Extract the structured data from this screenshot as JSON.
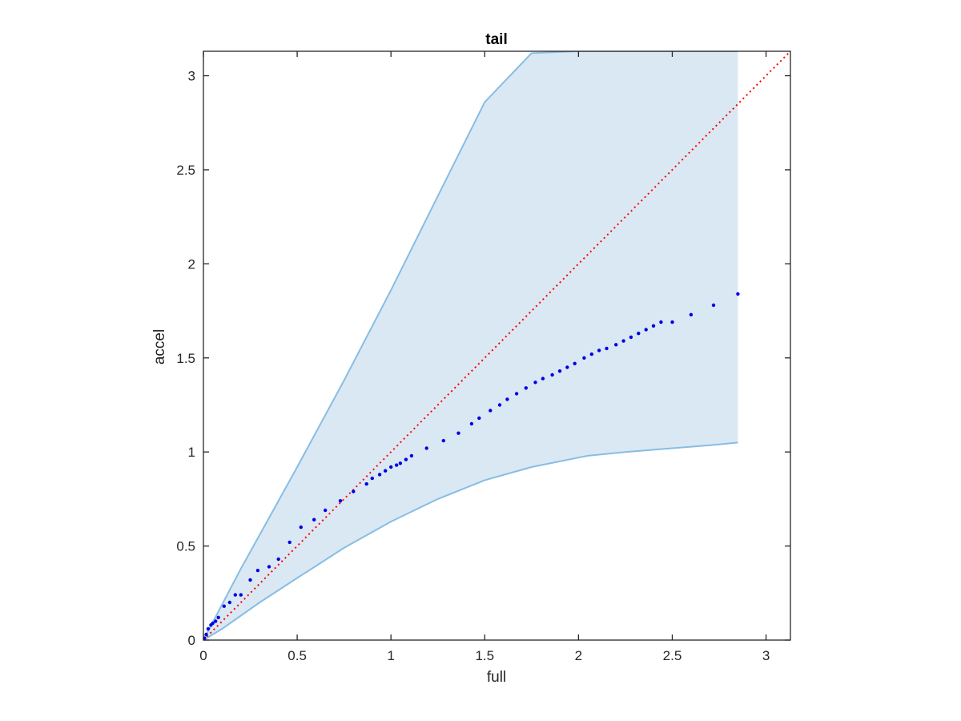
{
  "chart_data": {
    "type": "scatter",
    "title": "tail",
    "xlabel": "full",
    "ylabel": "accel",
    "xlim": [
      0,
      3.13
    ],
    "ylim": [
      0,
      3.13
    ],
    "x_ticks": [
      0,
      0.5,
      1,
      1.5,
      2,
      2.5,
      3
    ],
    "x_tick_labels": [
      "0",
      "0.5",
      "1",
      "1.5",
      "2",
      "2.5",
      "3"
    ],
    "y_ticks": [
      0,
      0.5,
      1,
      1.5,
      2,
      2.5,
      3
    ],
    "y_tick_labels": [
      "0",
      "0.5",
      "1",
      "1.5",
      "2",
      "2.5",
      "3"
    ],
    "grid": false,
    "colors": {
      "points": "#0000e6",
      "band_fill": "#dae8f4",
      "band_edge": "#87bde3",
      "identity_line": "#ff0000"
    },
    "reference_line": {
      "style": "dotted",
      "from": [
        0,
        0
      ],
      "to": [
        3.13,
        3.13
      ]
    },
    "band": {
      "x": [
        0,
        0.1,
        0.2,
        0.3,
        0.5,
        0.75,
        1.0,
        1.25,
        1.5,
        1.75,
        2.0,
        2.05,
        2.25,
        2.5,
        2.75,
        2.85
      ],
      "upper": [
        0,
        0.19,
        0.38,
        0.56,
        0.92,
        1.38,
        1.86,
        2.36,
        2.86,
        3.12,
        3.13,
        3.13,
        3.13,
        3.13,
        3.13,
        3.13
      ],
      "lower": [
        0,
        0.06,
        0.13,
        0.2,
        0.33,
        0.49,
        0.63,
        0.75,
        0.85,
        0.92,
        0.97,
        0.98,
        1.0,
        1.02,
        1.04,
        1.05
      ]
    },
    "points": {
      "x": [
        0.005,
        0.015,
        0.025,
        0.04,
        0.05,
        0.065,
        0.08,
        0.11,
        0.14,
        0.17,
        0.2,
        0.25,
        0.29,
        0.35,
        0.4,
        0.46,
        0.52,
        0.59,
        0.65,
        0.73,
        0.8,
        0.87,
        0.9,
        0.94,
        0.97,
        1.0,
        1.03,
        1.05,
        1.08,
        1.11,
        1.19,
        1.28,
        1.36,
        1.43,
        1.47,
        1.53,
        1.58,
        1.62,
        1.67,
        1.72,
        1.77,
        1.81,
        1.86,
        1.9,
        1.94,
        1.98,
        2.03,
        2.07,
        2.11,
        2.15,
        2.2,
        2.24,
        2.28,
        2.32,
        2.36,
        2.4,
        2.44,
        2.5,
        2.6,
        2.72,
        2.85
      ],
      "y": [
        0.01,
        0.03,
        0.06,
        0.08,
        0.09,
        0.1,
        0.12,
        0.18,
        0.2,
        0.24,
        0.24,
        0.32,
        0.37,
        0.39,
        0.43,
        0.52,
        0.6,
        0.64,
        0.69,
        0.74,
        0.79,
        0.83,
        0.86,
        0.88,
        0.9,
        0.92,
        0.93,
        0.94,
        0.96,
        0.98,
        1.02,
        1.06,
        1.1,
        1.15,
        1.18,
        1.22,
        1.25,
        1.28,
        1.31,
        1.34,
        1.37,
        1.39,
        1.41,
        1.43,
        1.45,
        1.47,
        1.5,
        1.52,
        1.54,
        1.55,
        1.57,
        1.59,
        1.61,
        1.63,
        1.65,
        1.67,
        1.69,
        1.69,
        1.73,
        1.78,
        1.84
      ]
    }
  }
}
